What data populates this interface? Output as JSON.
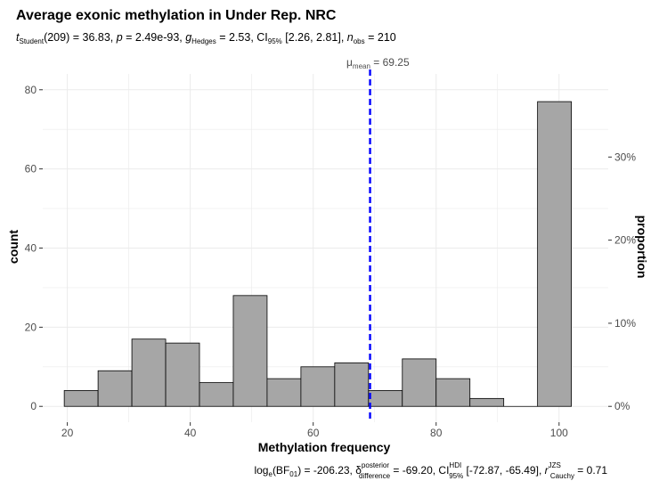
{
  "chart_data": {
    "type": "bar",
    "title": "Average exonic methylation in Under Rep. NRC",
    "subtitle": {
      "t_label": "t",
      "t_sub": "Student",
      "t_value": "(209) = 36.83, ",
      "p_label": "p",
      "p_value": " = 2.49e-93, ",
      "g_label": "g",
      "g_sub": "Hedges",
      "g_value": " = 2.53, CI",
      "ci_sub": "95%",
      "ci_value": " [2.26, 2.81], ",
      "n_label": "n",
      "n_sub": "obs",
      "n_value": " = 210"
    },
    "xlabel": "Methylation frequency",
    "ylabel": "count",
    "ylabel_right": "proportion",
    "xlim": [
      16,
      108
    ],
    "ylim": [
      -4,
      84
    ],
    "x_ticks": [
      20,
      40,
      60,
      80,
      100
    ],
    "y_ticks": [
      0,
      20,
      40,
      60,
      80
    ],
    "right_ticks": [
      "0%",
      "10%",
      "20%",
      "30%"
    ],
    "right_tick_fractions": [
      0,
      0.1,
      0.2,
      0.3
    ],
    "n_obs": 210,
    "bins": [
      {
        "x0": 19.5,
        "x1": 25.0,
        "count": 4
      },
      {
        "x0": 25.0,
        "x1": 30.5,
        "count": 9
      },
      {
        "x0": 30.5,
        "x1": 36.0,
        "count": 17
      },
      {
        "x0": 36.0,
        "x1": 41.5,
        "count": 16
      },
      {
        "x0": 41.5,
        "x1": 47.0,
        "count": 6
      },
      {
        "x0": 47.0,
        "x1": 52.5,
        "count": 28
      },
      {
        "x0": 52.5,
        "x1": 58.0,
        "count": 7
      },
      {
        "x0": 58.0,
        "x1": 63.5,
        "count": 10
      },
      {
        "x0": 63.5,
        "x1": 69.0,
        "count": 11
      },
      {
        "x0": 69.0,
        "x1": 74.5,
        "count": 4
      },
      {
        "x0": 74.5,
        "x1": 80.0,
        "count": 12
      },
      {
        "x0": 80.0,
        "x1": 85.5,
        "count": 7
      },
      {
        "x0": 85.5,
        "x1": 91.0,
        "count": 2
      },
      {
        "x0": 91.0,
        "x1": 96.5,
        "count": 0
      },
      {
        "x0": 96.5,
        "x1": 102.0,
        "count": 77
      }
    ],
    "mean_line": {
      "value": 69.25,
      "label_symbol": "μ",
      "label_sub": "mean",
      "label_value": " = 69.25",
      "color": "#0000ff"
    },
    "caption": {
      "bf_prefix": "log",
      "bf_sub": "e",
      "bf_mid": "(BF",
      "bf_sub2": "01",
      "bf_value": ") = -206.23, ",
      "delta_symbol": "δ",
      "delta_sup": "posterior",
      "delta_sub": "difference",
      "delta_value": " = -69.20, CI",
      "ci_sup": "HDI",
      "ci_sub": "95%",
      "ci_value": " [-72.87, -65.49], ",
      "r_symbol": "r",
      "r_sup": "JZS",
      "r_sub": "Cauchy",
      "r_value": " = 0.71"
    },
    "colors": {
      "bar_fill": "#a6a6a6",
      "bar_stroke": "#000000",
      "grid": "#ebebeb",
      "mean_line": "#0000ff"
    },
    "grid": true
  }
}
